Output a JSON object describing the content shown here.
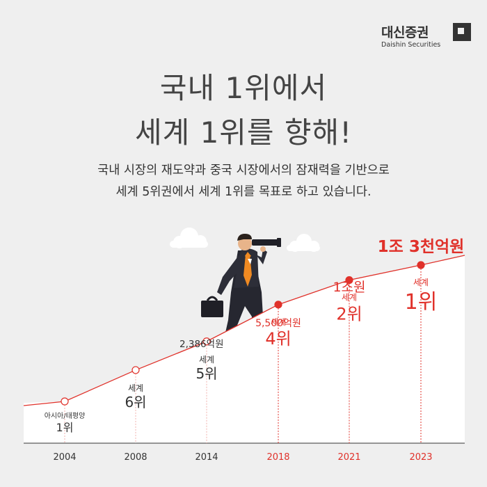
{
  "brand": {
    "name_ko": "대신증권",
    "name_en": "Daishin Securities"
  },
  "headline": {
    "line1": "국내 1위에서",
    "line2": "세계 1위를 향해!"
  },
  "subtitle": {
    "line1": "국내 시장의 재도약과 중국 시장에서의 잠재력을 기반으로",
    "line2": "세계 5위권에서 세계 1위를 목표로 하고 있습니다."
  },
  "colors": {
    "accent": "#e0312a",
    "dark": "#333333",
    "muted": "#f1b1ad"
  },
  "chart_data": {
    "type": "line",
    "x": [
      "2004",
      "2008",
      "2014",
      "2018",
      "2021",
      "2023"
    ],
    "points": [
      {
        "year": "2004",
        "rank_label": "아시아/태평양",
        "rank": "1위",
        "value_label": "",
        "highlight": false
      },
      {
        "year": "2008",
        "rank_label": "세계",
        "rank": "6위",
        "value_label": "",
        "highlight": false
      },
      {
        "year": "2014",
        "rank_label": "세계",
        "rank": "5위",
        "value_label": "2,386억원",
        "highlight": false
      },
      {
        "year": "2018",
        "rank_label": "세계",
        "rank": "4위",
        "value_label": "5,500억원",
        "highlight": true
      },
      {
        "year": "2021",
        "rank_label": "세계",
        "rank": "2위",
        "value_label": "1조원",
        "highlight": true
      },
      {
        "year": "2023",
        "rank_label": "세계",
        "rank": "1위",
        "value_label": "1조 3천억원",
        "highlight": true
      }
    ],
    "growth_level": [
      0.0,
      0.23,
      0.44,
      0.71,
      0.89,
      1.0
    ]
  },
  "illustration": [
    "businessman-with-telescope",
    "cloud-icon"
  ]
}
